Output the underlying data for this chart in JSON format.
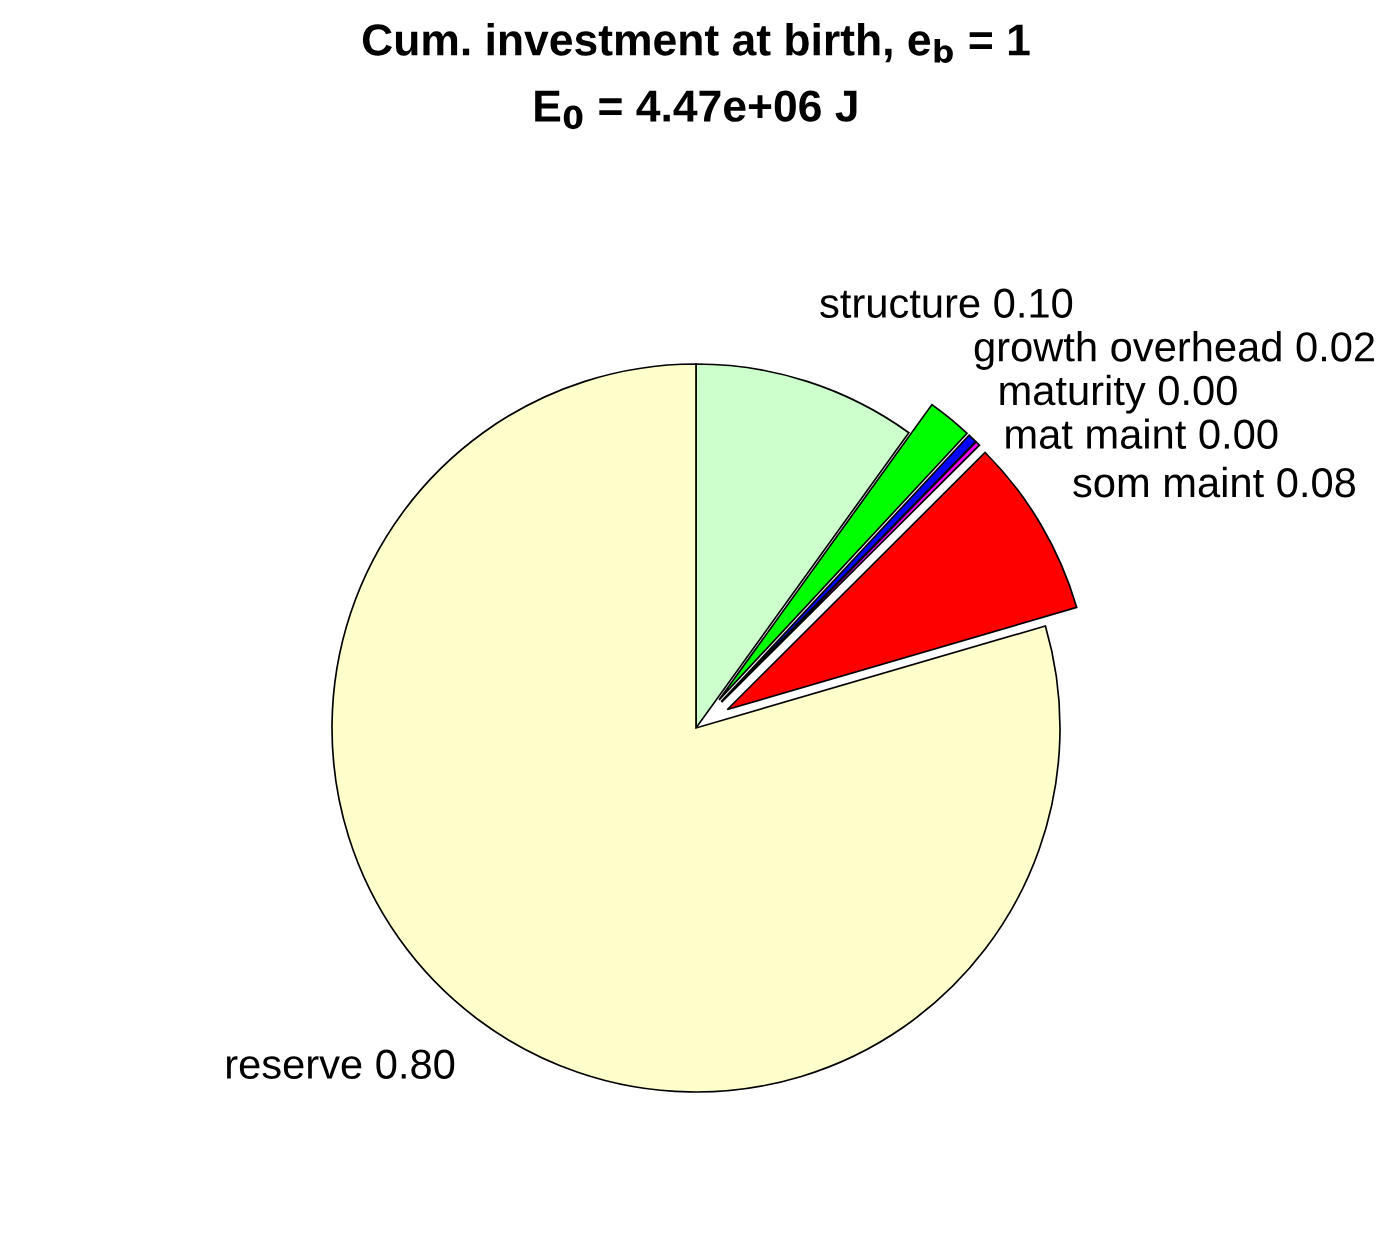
{
  "chart_data": {
    "type": "pie",
    "title": "Cum. investment at birth, e$_{b}$ = 1",
    "subtitle": "E$_{0}$ = 4.47e+06 J",
    "categories": [
      "structure",
      "growth overhead",
      "maturity",
      "mat maint",
      "som maint",
      "reserve"
    ],
    "values": [
      0.1,
      0.02,
      0.004,
      0.002,
      0.08,
      0.8
    ],
    "value_labels": [
      "0.10",
      "0.02",
      "0.00",
      "0.00",
      "0.08",
      "0.80"
    ],
    "colors": [
      "#ccffcc",
      "#00ff00",
      "#0000ff",
      "#ff00ff",
      "#ff0000",
      "#ffffcc"
    ]
  }
}
